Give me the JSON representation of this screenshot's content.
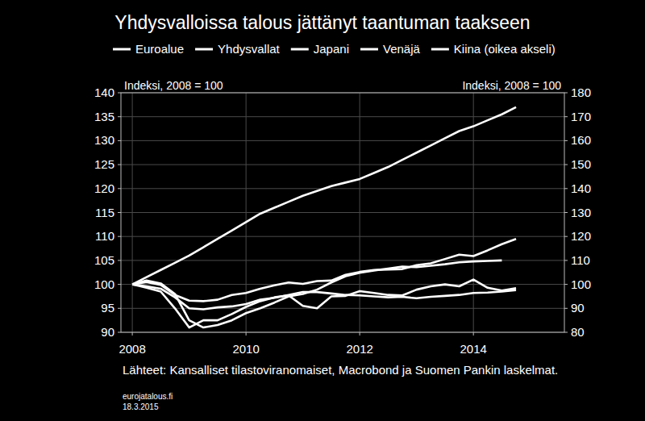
{
  "chart_data": {
    "type": "line",
    "title": "Yhdysvalloissa talous jättänyt taantuman taakseen",
    "ylabel": "Indeksi, 2008 = 100",
    "y2label": "Indeksi, 2008 = 100",
    "source": "Lähteet: Kansalliset tilastoviranomaiset, Macrobond ja Suomen Pankin laskelmat.",
    "footer": [
      "eurojatalous.fi",
      "18.3.2015"
    ],
    "x": [
      2008,
      2008.25,
      2008.5,
      2008.75,
      2009,
      2009.25,
      2009.5,
      2009.75,
      2010,
      2010.25,
      2010.5,
      2010.75,
      2011,
      2011.25,
      2011.5,
      2011.75,
      2012,
      2012.25,
      2012.5,
      2012.75,
      2013,
      2013.25,
      2013.5,
      2013.75,
      2014,
      2014.25,
      2014.5,
      2014.75
    ],
    "xlim": [
      2007.8,
      2015.6
    ],
    "xticks": [
      2008,
      2010,
      2012,
      2014
    ],
    "ylim": [
      90,
      140
    ],
    "yticks": [
      90,
      95,
      100,
      105,
      110,
      115,
      120,
      125,
      130,
      135,
      140
    ],
    "y2lim": [
      80,
      180
    ],
    "y2ticks": [
      80,
      90,
      100,
      110,
      120,
      130,
      140,
      150,
      160,
      170,
      180
    ],
    "grid": true,
    "legend": "top",
    "series": [
      {
        "name": "Euroalue",
        "color": "#ffffff",
        "values": [
          100,
          99.6,
          99.1,
          97.3,
          95.0,
          94.8,
          95.2,
          95.4,
          95.9,
          96.8,
          97.2,
          97.8,
          98.4,
          98.4,
          98.1,
          97.8,
          97.7,
          97.5,
          97.3,
          97.4,
          97.1,
          97.4,
          97.6,
          97.8,
          98.2,
          98.3,
          98.5,
          98.8
        ]
      },
      {
        "name": "Yhdysvallat",
        "color": "#ffffff",
        "values": [
          100,
          100.5,
          99.9,
          97.8,
          96.6,
          96.5,
          96.8,
          97.8,
          98.2,
          99.1,
          99.8,
          100.4,
          100.1,
          100.7,
          100.8,
          102.0,
          102.6,
          103.0,
          103.1,
          103.2,
          104.0,
          104.4,
          105.3,
          106.2,
          105.9,
          107.1,
          108.4,
          109.5
        ]
      },
      {
        "name": "Japani",
        "color": "#ffffff",
        "values": [
          100,
          99.3,
          98.5,
          95.0,
          91.0,
          92.5,
          92.5,
          93.8,
          95.3,
          96.5,
          97.3,
          97.7,
          95.5,
          95.0,
          97.5,
          97.6,
          98.6,
          98.2,
          97.8,
          97.7,
          98.9,
          99.6,
          100.0,
          99.6,
          101.0,
          99.3,
          98.7,
          99.2
        ]
      },
      {
        "name": "Venäjä",
        "color": "#ffffff",
        "values": [
          100,
          100.8,
          100.2,
          98.0,
          92.5,
          91.0,
          91.5,
          92.5,
          94.0,
          95.0,
          96.2,
          97.5,
          98.0,
          98.9,
          100.4,
          101.7,
          102.4,
          102.9,
          103.3,
          103.7,
          103.6,
          103.9,
          104.2,
          104.6,
          104.8,
          104.9,
          105.0,
          null
        ]
      },
      {
        "name": "Kiina (oikea akseli)",
        "color": "#ffffff",
        "axis": "y2",
        "values": [
          100,
          103,
          106,
          109,
          112,
          115.5,
          119,
          122.5,
          126,
          129.5,
          132,
          134.5,
          137,
          139,
          141,
          142.5,
          144,
          146.5,
          149,
          152,
          155,
          158,
          161,
          164,
          166,
          168.5,
          171,
          174
        ]
      }
    ]
  }
}
